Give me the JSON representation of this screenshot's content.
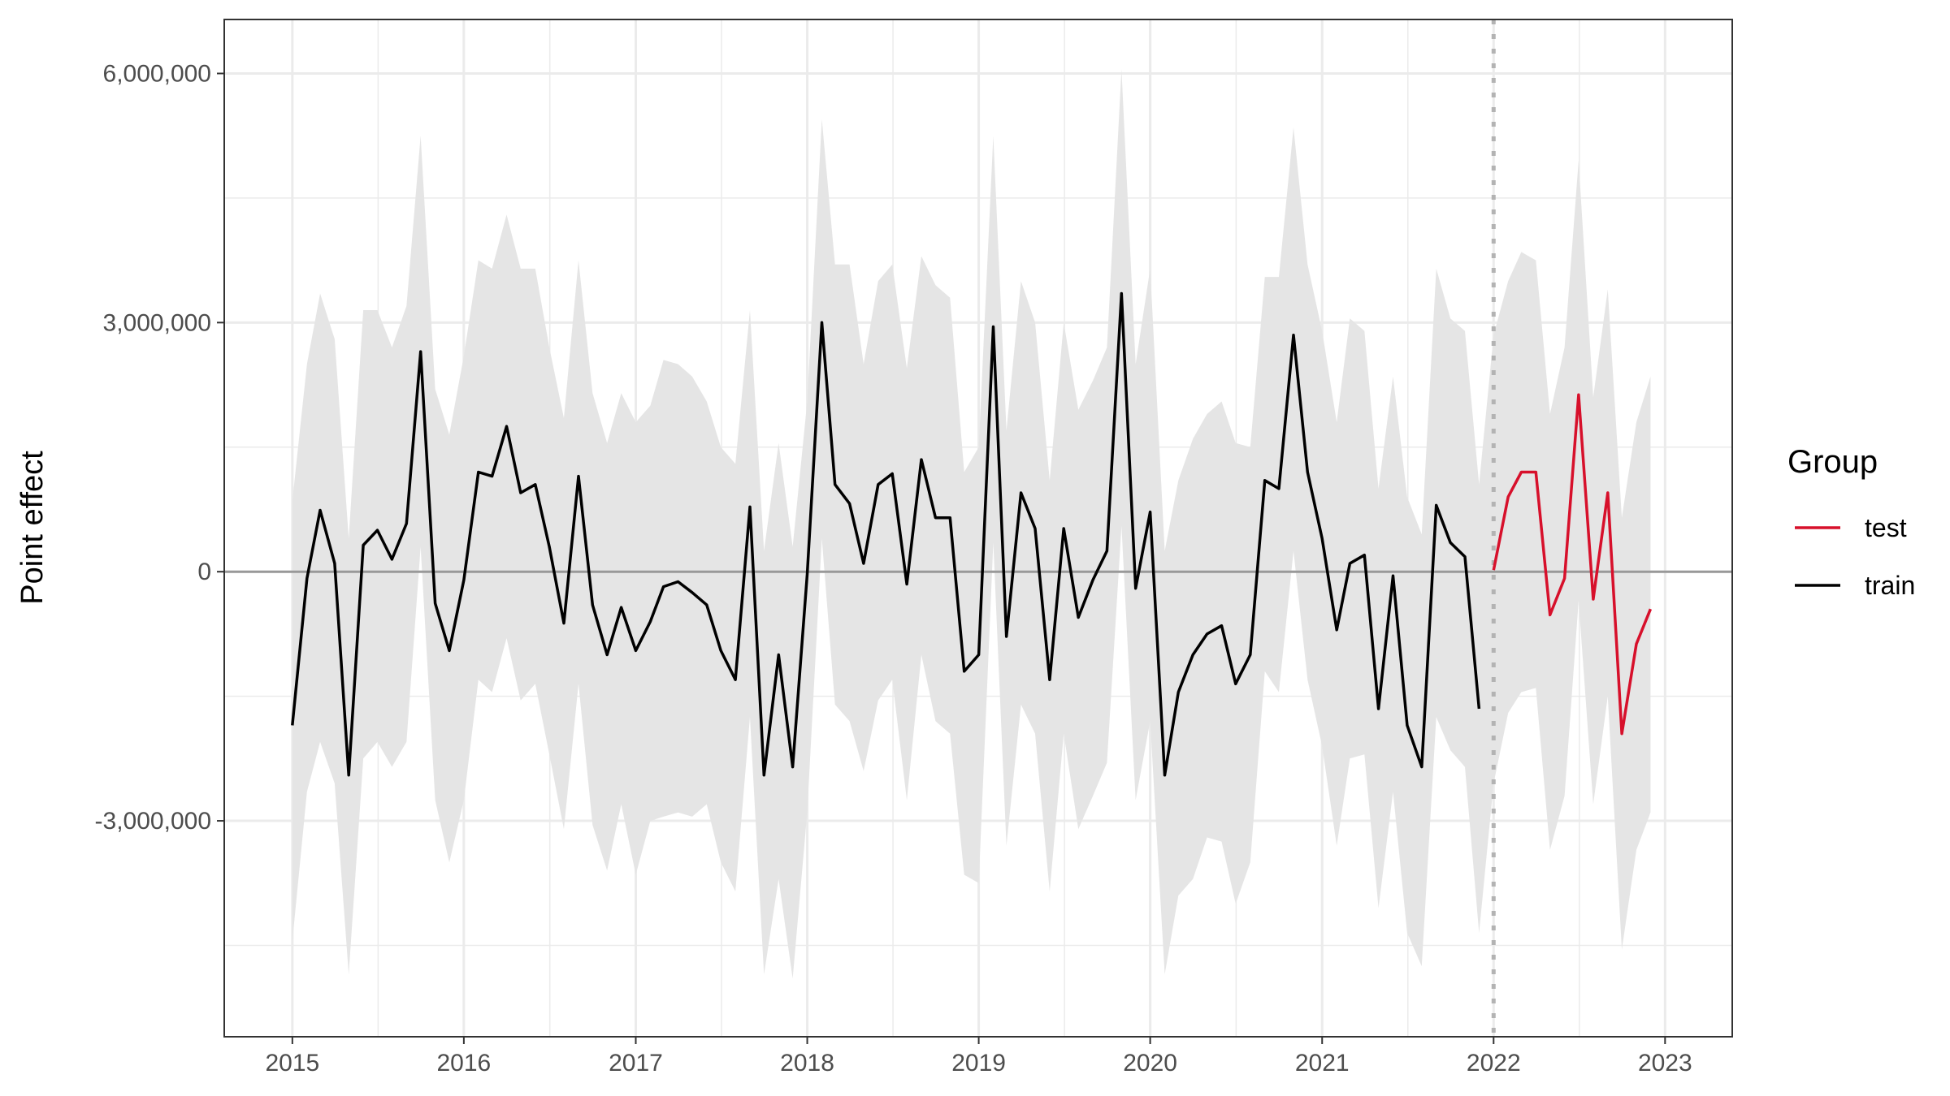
{
  "chart_data": {
    "type": "line",
    "ylabel": "Point effect",
    "xlabel": "",
    "xlim": [
      "2014-08-09",
      "2023-05-24"
    ],
    "ylim": [
      -5600000,
      6650000
    ],
    "x_ticks": [
      {
        "date": "2015-01-01",
        "label": "2015"
      },
      {
        "date": "2016-01-01",
        "label": "2016"
      },
      {
        "date": "2017-01-01",
        "label": "2017"
      },
      {
        "date": "2018-01-01",
        "label": "2018"
      },
      {
        "date": "2019-01-01",
        "label": "2019"
      },
      {
        "date": "2020-01-01",
        "label": "2020"
      },
      {
        "date": "2021-01-01",
        "label": "2021"
      },
      {
        "date": "2022-01-01",
        "label": "2022"
      },
      {
        "date": "2023-01-01",
        "label": "2023"
      }
    ],
    "y_ticks": [
      {
        "value": 6000000,
        "label": "6,000,000"
      },
      {
        "value": 3000000,
        "label": "3,000,000"
      },
      {
        "value": 0,
        "label": "0"
      },
      {
        "value": -3000000,
        "label": "-3,000,000"
      }
    ],
    "y_minor_grid": [
      4500000,
      1500000,
      -1500000,
      -4500000
    ],
    "reference_line_y": 0,
    "cutoff_date": "2022-01-01",
    "grid": true,
    "legend": {
      "title": "Group",
      "position": "right"
    },
    "colors": {
      "train": "#000000",
      "test": "#d7102b",
      "band": "#e5e5e5",
      "reference": "#999999",
      "cutoff": "#b3b3b3"
    },
    "series": [
      {
        "name": "train",
        "color": "#000000",
        "start": "2015-01",
        "values": [
          -1850000,
          -80000,
          740000,
          100000,
          -2450000,
          320000,
          500000,
          150000,
          580000,
          2650000,
          -380000,
          -950000,
          -100000,
          1200000,
          1150000,
          1750000,
          950000,
          1050000,
          300000,
          -620000,
          1150000,
          -400000,
          -1000000,
          -430000,
          -950000,
          -600000,
          -180000,
          -120000,
          -250000,
          -400000,
          -950000,
          -1300000,
          780000,
          -2450000,
          -1000000,
          -2350000,
          -30000,
          3000000,
          1050000,
          820000,
          100000,
          1050000,
          1180000,
          -150000,
          1350000,
          650000,
          650000,
          -1200000,
          -1000000,
          2950000,
          -780000,
          950000,
          520000,
          -1300000,
          520000,
          -550000,
          -100000,
          250000,
          3350000,
          -200000,
          720000,
          -2450000,
          -1450000,
          -1000000,
          -750000,
          -650000,
          -1350000,
          -1000000,
          1100000,
          1000000,
          2850000,
          1200000,
          400000,
          -700000,
          100000,
          200000,
          -1650000,
          -50000,
          -1850000,
          -2350000,
          800000,
          350000,
          180000,
          -1650000
        ]
      },
      {
        "name": "test",
        "color": "#d7102b",
        "start": "2022-01",
        "values": [
          20000,
          900000,
          1200000,
          1200000,
          -520000,
          -80000,
          2130000,
          -330000,
          950000,
          -1950000,
          -870000,
          -450000
        ]
      }
    ],
    "band": {
      "start": "2015-01",
      "upper": [
        850000,
        2500000,
        3350000,
        2800000,
        400000,
        3150000,
        3150000,
        2700000,
        3200000,
        5250000,
        2200000,
        1650000,
        2600000,
        3750000,
        3650000,
        4300000,
        3650000,
        3650000,
        2700000,
        1850000,
        3750000,
        2150000,
        1550000,
        2150000,
        1800000,
        2000000,
        2550000,
        2500000,
        2350000,
        2050000,
        1500000,
        1300000,
        3150000,
        250000,
        1550000,
        300000,
        2050000,
        5450000,
        3700000,
        3700000,
        2500000,
        3500000,
        3700000,
        2450000,
        3800000,
        3450000,
        3300000,
        1200000,
        1500000,
        5250000,
        1700000,
        3500000,
        3000000,
        1100000,
        3000000,
        1950000,
        2300000,
        2700000,
        6050000,
        2500000,
        3650000,
        250000,
        1100000,
        1600000,
        1900000,
        2050000,
        1550000,
        1500000,
        3550000,
        3550000,
        5350000,
        3700000,
        2900000,
        1800000,
        3050000,
        2900000,
        1000000,
        2350000,
        900000,
        450000,
        3650000,
        3050000,
        2900000,
        1050000,
        2850000,
        3500000,
        3850000,
        3750000,
        1900000,
        2700000,
        4950000,
        2100000,
        3400000,
        650000,
        1800000,
        2350000
      ],
      "lower": [
        -4450000,
        -2650000,
        -2050000,
        -2550000,
        -4850000,
        -2250000,
        -2050000,
        -2350000,
        -2050000,
        300000,
        -2750000,
        -3500000,
        -2750000,
        -1300000,
        -1450000,
        -800000,
        -1550000,
        -1350000,
        -2200000,
        -3100000,
        -1350000,
        -3050000,
        -3600000,
        -2800000,
        -3650000,
        -3000000,
        -2950000,
        -2900000,
        -2950000,
        -2800000,
        -3500000,
        -3850000,
        -1750000,
        -4850000,
        -3700000,
        -4900000,
        -2900000,
        400000,
        -1600000,
        -1800000,
        -2400000,
        -1550000,
        -1300000,
        -2750000,
        -1000000,
        -1800000,
        -1950000,
        -3650000,
        -3750000,
        350000,
        -3300000,
        -1600000,
        -1950000,
        -3850000,
        -1950000,
        -3100000,
        -2700000,
        -2300000,
        550000,
        -2750000,
        -1800000,
        -4850000,
        -3900000,
        -3700000,
        -3200000,
        -3250000,
        -4000000,
        -3500000,
        -1200000,
        -1450000,
        250000,
        -1300000,
        -2100000,
        -3300000,
        -2250000,
        -2200000,
        -4050000,
        -2650000,
        -4350000,
        -4750000,
        -1750000,
        -2150000,
        -2350000,
        -4350000,
        -2550000,
        -1700000,
        -1450000,
        -1400000,
        -3350000,
        -2700000,
        -350000,
        -2800000,
        -1500000,
        -4550000,
        -3350000,
        -2900000
      ]
    }
  }
}
